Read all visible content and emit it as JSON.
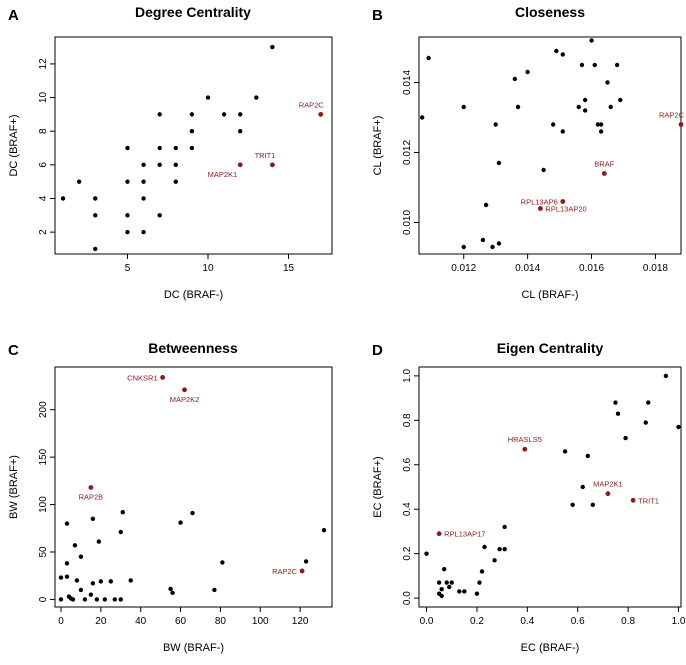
{
  "colors": {
    "point": "#000000",
    "highlight": "#8b1a1a",
    "text": "#000000"
  },
  "chart_data": [
    {
      "letter": "A",
      "type": "scatter",
      "title": "Degree Centrality",
      "xlabel": "DC (BRAF-)",
      "ylabel": "DC (BRAF+)",
      "xlim": [
        0.5,
        17.7
      ],
      "ylim": [
        0.7,
        13.6
      ],
      "xticks": [
        5,
        10,
        15
      ],
      "yticks": [
        2,
        4,
        6,
        8,
        10,
        12
      ],
      "points": [
        [
          1,
          4
        ],
        [
          2,
          5
        ],
        [
          3,
          1
        ],
        [
          3,
          3
        ],
        [
          3,
          4
        ],
        [
          5,
          2
        ],
        [
          5,
          3
        ],
        [
          5,
          5
        ],
        [
          5,
          7
        ],
        [
          6,
          2
        ],
        [
          6,
          4
        ],
        [
          6,
          5
        ],
        [
          6,
          6
        ],
        [
          7,
          3
        ],
        [
          7,
          6
        ],
        [
          7,
          7
        ],
        [
          7,
          9
        ],
        [
          8,
          5
        ],
        [
          8,
          6
        ],
        [
          8,
          7
        ],
        [
          9,
          7
        ],
        [
          9,
          8
        ],
        [
          9,
          9
        ],
        [
          10,
          10
        ],
        [
          11,
          9
        ],
        [
          12,
          8
        ],
        [
          12,
          9
        ],
        [
          13,
          10
        ],
        [
          14,
          13
        ]
      ],
      "highlighted": [
        {
          "label": "RAP2C",
          "x": 17,
          "y": 9,
          "anchor": "end",
          "pos": "above"
        },
        {
          "label": "TRIT1",
          "x": 14,
          "y": 6,
          "anchor": "end",
          "pos": "above"
        },
        {
          "label": "MAP2K1",
          "x": 12,
          "y": 6,
          "anchor": "end",
          "pos": "below"
        }
      ]
    },
    {
      "letter": "B",
      "type": "scatter",
      "title": "Closeness",
      "xlabel": "CL (BRAF-)",
      "ylabel": "CL (BRAF+)",
      "xlim": [
        0.0106,
        0.0188
      ],
      "ylim": [
        0.0091,
        0.0153
      ],
      "xticks": [
        0.012,
        0.014,
        0.016,
        0.018
      ],
      "yticks": [
        0.01,
        0.012,
        0.014
      ],
      "xticklabels": [
        "0.012",
        "0.014",
        "0.016",
        "0.018"
      ],
      "yticklabels": [
        "0.010",
        "0.012",
        "0.014"
      ],
      "points": [
        [
          0.0107,
          0.013
        ],
        [
          0.0109,
          0.0147
        ],
        [
          0.012,
          0.0133
        ],
        [
          0.012,
          0.0093
        ],
        [
          0.0126,
          0.0095
        ],
        [
          0.0127,
          0.0105
        ],
        [
          0.0129,
          0.0093
        ],
        [
          0.013,
          0.0128
        ],
        [
          0.0131,
          0.0094
        ],
        [
          0.0131,
          0.0117
        ],
        [
          0.0136,
          0.0141
        ],
        [
          0.0137,
          0.0133
        ],
        [
          0.014,
          0.0143
        ],
        [
          0.0145,
          0.0115
        ],
        [
          0.0148,
          0.0128
        ],
        [
          0.0149,
          0.0149
        ],
        [
          0.0151,
          0.0126
        ],
        [
          0.0151,
          0.0148
        ],
        [
          0.0156,
          0.0133
        ],
        [
          0.0157,
          0.0145
        ],
        [
          0.0158,
          0.0132
        ],
        [
          0.0158,
          0.0135
        ],
        [
          0.016,
          0.0152
        ],
        [
          0.0161,
          0.0145
        ],
        [
          0.0162,
          0.0128
        ],
        [
          0.0163,
          0.0126
        ],
        [
          0.0163,
          0.0128
        ],
        [
          0.0165,
          0.014
        ],
        [
          0.0166,
          0.0133
        ],
        [
          0.0168,
          0.0145
        ],
        [
          0.0169,
          0.0135
        ]
      ],
      "highlighted": [
        {
          "label": "RAP2C",
          "x": 0.0188,
          "y": 0.0128,
          "anchor": "end",
          "pos": "above"
        },
        {
          "label": "BRAF",
          "x": 0.0164,
          "y": 0.0114,
          "anchor": "middle",
          "pos": "above"
        },
        {
          "label": "RPL13AP6",
          "x": 0.0151,
          "y": 0.0106,
          "anchor": "end",
          "pos": "left"
        },
        {
          "label": "RPL13AP20",
          "x": 0.0144,
          "y": 0.0104,
          "anchor": "start",
          "pos": "right"
        }
      ]
    },
    {
      "letter": "C",
      "type": "scatter",
      "title": "Betweenness",
      "xlabel": "BW (BRAF-)",
      "ylabel": "BW (BRAF+)",
      "xlim": [
        -3,
        136
      ],
      "ylim": [
        -8,
        245
      ],
      "xticks": [
        0,
        20,
        40,
        60,
        80,
        100,
        120
      ],
      "yticks": [
        0,
        50,
        100,
        150,
        200
      ],
      "points": [
        [
          0,
          0
        ],
        [
          0,
          23
        ],
        [
          3,
          24
        ],
        [
          3,
          80
        ],
        [
          3,
          38
        ],
        [
          4,
          3
        ],
        [
          5,
          1
        ],
        [
          6,
          0
        ],
        [
          7,
          57
        ],
        [
          8,
          20
        ],
        [
          10,
          10
        ],
        [
          10,
          45
        ],
        [
          12,
          0
        ],
        [
          15,
          5
        ],
        [
          16,
          17
        ],
        [
          16,
          85
        ],
        [
          18,
          0
        ],
        [
          19,
          61
        ],
        [
          20,
          19
        ],
        [
          22,
          0
        ],
        [
          25,
          19
        ],
        [
          27,
          0
        ],
        [
          30,
          0
        ],
        [
          30,
          71
        ],
        [
          31,
          92
        ],
        [
          35,
          20
        ],
        [
          55,
          11
        ],
        [
          56,
          7
        ],
        [
          60,
          81
        ],
        [
          66,
          91
        ],
        [
          77,
          10
        ],
        [
          81,
          39
        ],
        [
          123,
          40
        ],
        [
          132,
          73
        ]
      ],
      "highlighted": [
        {
          "label": "CNKSR1",
          "x": 51,
          "y": 234,
          "anchor": "end",
          "pos": "left"
        },
        {
          "label": "MAP2K2",
          "x": 62,
          "y": 221,
          "anchor": "middle",
          "pos": "below"
        },
        {
          "label": "RAP2B",
          "x": 15,
          "y": 118,
          "anchor": "middle",
          "pos": "below"
        },
        {
          "label": "RAP2C",
          "x": 121,
          "y": 30,
          "anchor": "end",
          "pos": "left"
        }
      ]
    },
    {
      "letter": "D",
      "type": "scatter",
      "title": "Eigen Centrality",
      "xlabel": "EC (BRAF-)",
      "ylabel": "EC (BRAF+)",
      "xlim": [
        -0.03,
        1.01
      ],
      "ylim": [
        -0.04,
        1.04
      ],
      "xticks": [
        0.0,
        0.2,
        0.4,
        0.6,
        0.8,
        1.0
      ],
      "yticks": [
        0.0,
        0.2,
        0.4,
        0.6,
        0.8,
        1.0
      ],
      "xticklabels": [
        "0.0",
        "0.2",
        "0.4",
        "0.6",
        "0.8",
        "1.0"
      ],
      "yticklabels": [
        "0.0",
        "0.2",
        "0.4",
        "0.6",
        "0.8",
        "1.0"
      ],
      "points": [
        [
          0.0,
          0.2
        ],
        [
          0.05,
          0.02
        ],
        [
          0.05,
          0.07
        ],
        [
          0.06,
          0.01
        ],
        [
          0.06,
          0.04
        ],
        [
          0.07,
          0.13
        ],
        [
          0.08,
          0.07
        ],
        [
          0.09,
          0.05
        ],
        [
          0.1,
          0.07
        ],
        [
          0.13,
          0.03
        ],
        [
          0.15,
          0.03
        ],
        [
          0.2,
          0.02
        ],
        [
          0.21,
          0.07
        ],
        [
          0.22,
          0.12
        ],
        [
          0.23,
          0.23
        ],
        [
          0.27,
          0.17
        ],
        [
          0.29,
          0.22
        ],
        [
          0.31,
          0.22
        ],
        [
          0.31,
          0.32
        ],
        [
          0.55,
          0.66
        ],
        [
          0.58,
          0.42
        ],
        [
          0.62,
          0.5
        ],
        [
          0.64,
          0.64
        ],
        [
          0.66,
          0.42
        ],
        [
          0.75,
          0.88
        ],
        [
          0.76,
          0.83
        ],
        [
          0.79,
          0.72
        ],
        [
          0.87,
          0.79
        ],
        [
          0.88,
          0.88
        ],
        [
          0.95,
          1.0
        ],
        [
          1.0,
          0.77
        ]
      ],
      "highlighted": [
        {
          "label": "HRASLS5",
          "x": 0.39,
          "y": 0.67,
          "anchor": "middle",
          "pos": "above"
        },
        {
          "label": "RPL13AP17",
          "x": 0.05,
          "y": 0.29,
          "anchor": "start",
          "pos": "right"
        },
        {
          "label": "MAP2K1",
          "x": 0.72,
          "y": 0.47,
          "anchor": "middle",
          "pos": "above"
        },
        {
          "label": "TRIT1",
          "x": 0.82,
          "y": 0.44,
          "anchor": "start",
          "pos": "right"
        }
      ]
    }
  ]
}
